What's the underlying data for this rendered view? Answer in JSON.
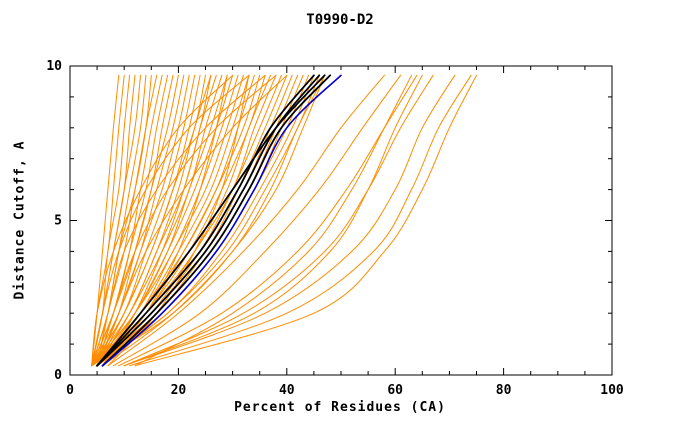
{
  "page": {
    "background": "#ffffff"
  },
  "chart_data": {
    "type": "line",
    "title": "T0990-D2",
    "xlabel": "Percent of Residues (CA)",
    "ylabel": "Distance Cutoff, A",
    "xlim": [
      0,
      100
    ],
    "ylim": [
      0,
      10
    ],
    "grid": false,
    "legend": "none",
    "x_major_ticks": [
      0,
      20,
      40,
      60,
      80,
      100
    ],
    "x_minor_ticks": [
      5,
      10,
      15,
      25,
      30,
      35,
      45,
      50,
      55,
      65,
      70,
      75,
      85,
      90,
      95
    ],
    "y_major_ticks": [
      0,
      5,
      10
    ],
    "y_minor_ticks": [
      1,
      2,
      3,
      4,
      6,
      7,
      8,
      9
    ],
    "colors": {
      "model": "#ff8c00",
      "highlight": "#000000",
      "reference": "#0000cc"
    },
    "y_samples": [
      0.3,
      2,
      4,
      6,
      8,
      9.7
    ],
    "series": {
      "orange_x": [
        [
          4,
          5,
          6,
          7,
          8,
          9
        ],
        [
          4,
          5,
          7,
          8,
          9,
          10
        ],
        [
          4,
          6,
          7,
          9,
          10,
          11
        ],
        [
          4,
          6,
          8,
          10,
          11,
          12
        ],
        [
          4,
          6,
          8,
          10,
          12,
          13
        ],
        [
          5,
          7,
          9,
          11,
          13,
          14
        ],
        [
          4,
          7,
          9,
          12,
          14,
          15
        ],
        [
          5,
          7,
          10,
          12,
          14,
          16
        ],
        [
          4,
          8,
          11,
          13,
          15,
          17
        ],
        [
          5,
          8,
          11,
          14,
          16,
          18
        ],
        [
          4,
          8,
          12,
          15,
          17,
          19
        ],
        [
          5,
          9,
          12,
          15,
          18,
          20
        ],
        [
          4,
          9,
          13,
          16,
          19,
          21
        ],
        [
          5,
          9,
          13,
          17,
          20,
          22
        ],
        [
          4,
          10,
          14,
          18,
          21,
          23
        ],
        [
          5,
          10,
          15,
          19,
          22,
          24
        ],
        [
          4,
          10,
          15,
          19,
          23,
          25
        ],
        [
          5,
          11,
          16,
          20,
          23,
          26
        ],
        [
          4,
          11,
          16,
          21,
          24,
          27
        ],
        [
          5,
          11,
          17,
          22,
          25,
          28
        ],
        [
          4,
          12,
          18,
          22,
          26,
          29
        ],
        [
          5,
          12,
          18,
          23,
          27,
          30
        ],
        [
          4,
          12,
          19,
          24,
          28,
          31
        ],
        [
          5,
          13,
          19,
          25,
          29,
          32
        ],
        [
          4,
          13,
          20,
          26,
          30,
          33
        ],
        [
          5,
          13,
          21,
          27,
          31,
          34
        ],
        [
          4,
          14,
          21,
          27,
          32,
          35
        ],
        [
          5,
          14,
          22,
          28,
          33,
          36
        ],
        [
          4,
          14,
          23,
          29,
          33,
          37
        ],
        [
          5,
          15,
          23,
          30,
          34,
          38
        ],
        [
          4,
          15,
          24,
          30,
          35,
          39
        ],
        [
          5,
          15,
          25,
          31,
          36,
          40
        ],
        [
          4,
          16,
          25,
          32,
          37,
          41
        ],
        [
          5,
          16,
          26,
          33,
          38,
          42
        ],
        [
          4,
          17,
          27,
          34,
          39,
          43
        ],
        [
          5,
          17,
          27,
          34,
          40,
          44
        ],
        [
          4,
          18,
          28,
          35,
          41,
          45
        ],
        [
          5,
          18,
          29,
          36,
          42,
          46
        ],
        [
          4,
          19,
          30,
          37,
          42,
          47
        ],
        [
          6,
          19,
          30,
          38,
          43,
          47
        ],
        [
          4,
          6,
          9,
          14,
          22,
          33
        ],
        [
          4,
          7,
          10,
          16,
          25,
          36
        ],
        [
          5,
          8,
          12,
          18,
          27,
          38
        ],
        [
          4,
          5,
          8,
          13,
          20,
          30
        ],
        [
          5,
          9,
          14,
          21,
          30,
          40
        ],
        [
          6,
          14,
          20,
          24,
          27,
          29
        ],
        [
          7,
          16,
          23,
          28,
          31,
          33
        ],
        [
          6,
          12,
          17,
          21,
          24,
          26
        ],
        [
          7,
          20,
          32,
          42,
          50,
          58
        ],
        [
          8,
          24,
          36,
          46,
          54,
          61
        ],
        [
          9,
          28,
          42,
          51,
          58,
          64
        ],
        [
          10,
          32,
          47,
          55,
          61,
          67
        ],
        [
          10,
          36,
          52,
          60,
          65,
          71
        ],
        [
          11,
          40,
          56,
          63,
          68,
          74
        ],
        [
          12,
          45,
          58,
          65,
          70,
          75
        ],
        [
          12,
          30,
          44,
          52,
          58,
          63
        ],
        [
          10,
          34,
          48,
          55,
          60,
          65
        ]
      ],
      "black_x": [
        [
          5,
          14,
          24,
          31,
          37,
          45
        ],
        [
          5,
          15,
          25,
          32,
          38,
          46
        ],
        [
          6,
          16,
          26,
          33,
          39,
          48
        ],
        [
          5,
          13,
          22,
          30,
          38,
          47
        ]
      ],
      "blue_x": [
        [
          6,
          17,
          27,
          34,
          40,
          50
        ]
      ]
    }
  }
}
